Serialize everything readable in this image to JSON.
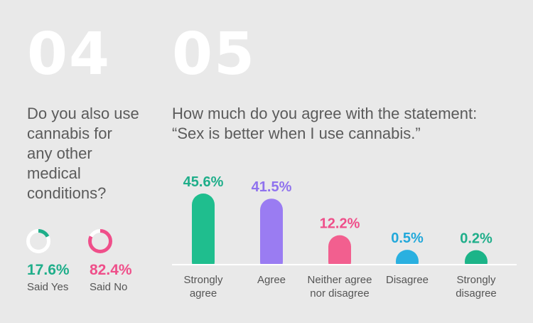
{
  "section4": {
    "number": "04",
    "question": "Do you also use cannabis for any other medical conditions?",
    "results": [
      {
        "percent_label": "17.6%",
        "label": "Said Yes",
        "value": 17.6,
        "color": "#1fae8a"
      },
      {
        "percent_label": "82.4%",
        "label": "Said No",
        "value": 82.4,
        "color": "#ef4f8a"
      }
    ]
  },
  "section5": {
    "number": "05",
    "question_line1": "How much do you agree with the statement:",
    "question_line2": "“Sex is better when I use cannabis.”"
  },
  "chart_data": {
    "type": "bar",
    "categories": [
      [
        "Strongly",
        "agree"
      ],
      [
        "Agree"
      ],
      [
        "Neither agree",
        "nor disagree"
      ],
      [
        "Disagree"
      ],
      [
        "Strongly",
        "disagree"
      ]
    ],
    "values": [
      45.6,
      41.5,
      12.2,
      0.5,
      0.2
    ],
    "value_labels": [
      "45.6%",
      "41.5%",
      "12.2%",
      "0.5%",
      "0.2%"
    ],
    "colors": [
      "#1fbe8e",
      "#9a7cf2",
      "#f25f8f",
      "#2ab0e0",
      "#1cb488"
    ],
    "label_colors": [
      "#1fae8a",
      "#8f72ee",
      "#ef4f8a",
      "#22a8da",
      "#1fae8a"
    ],
    "grid": false
  }
}
